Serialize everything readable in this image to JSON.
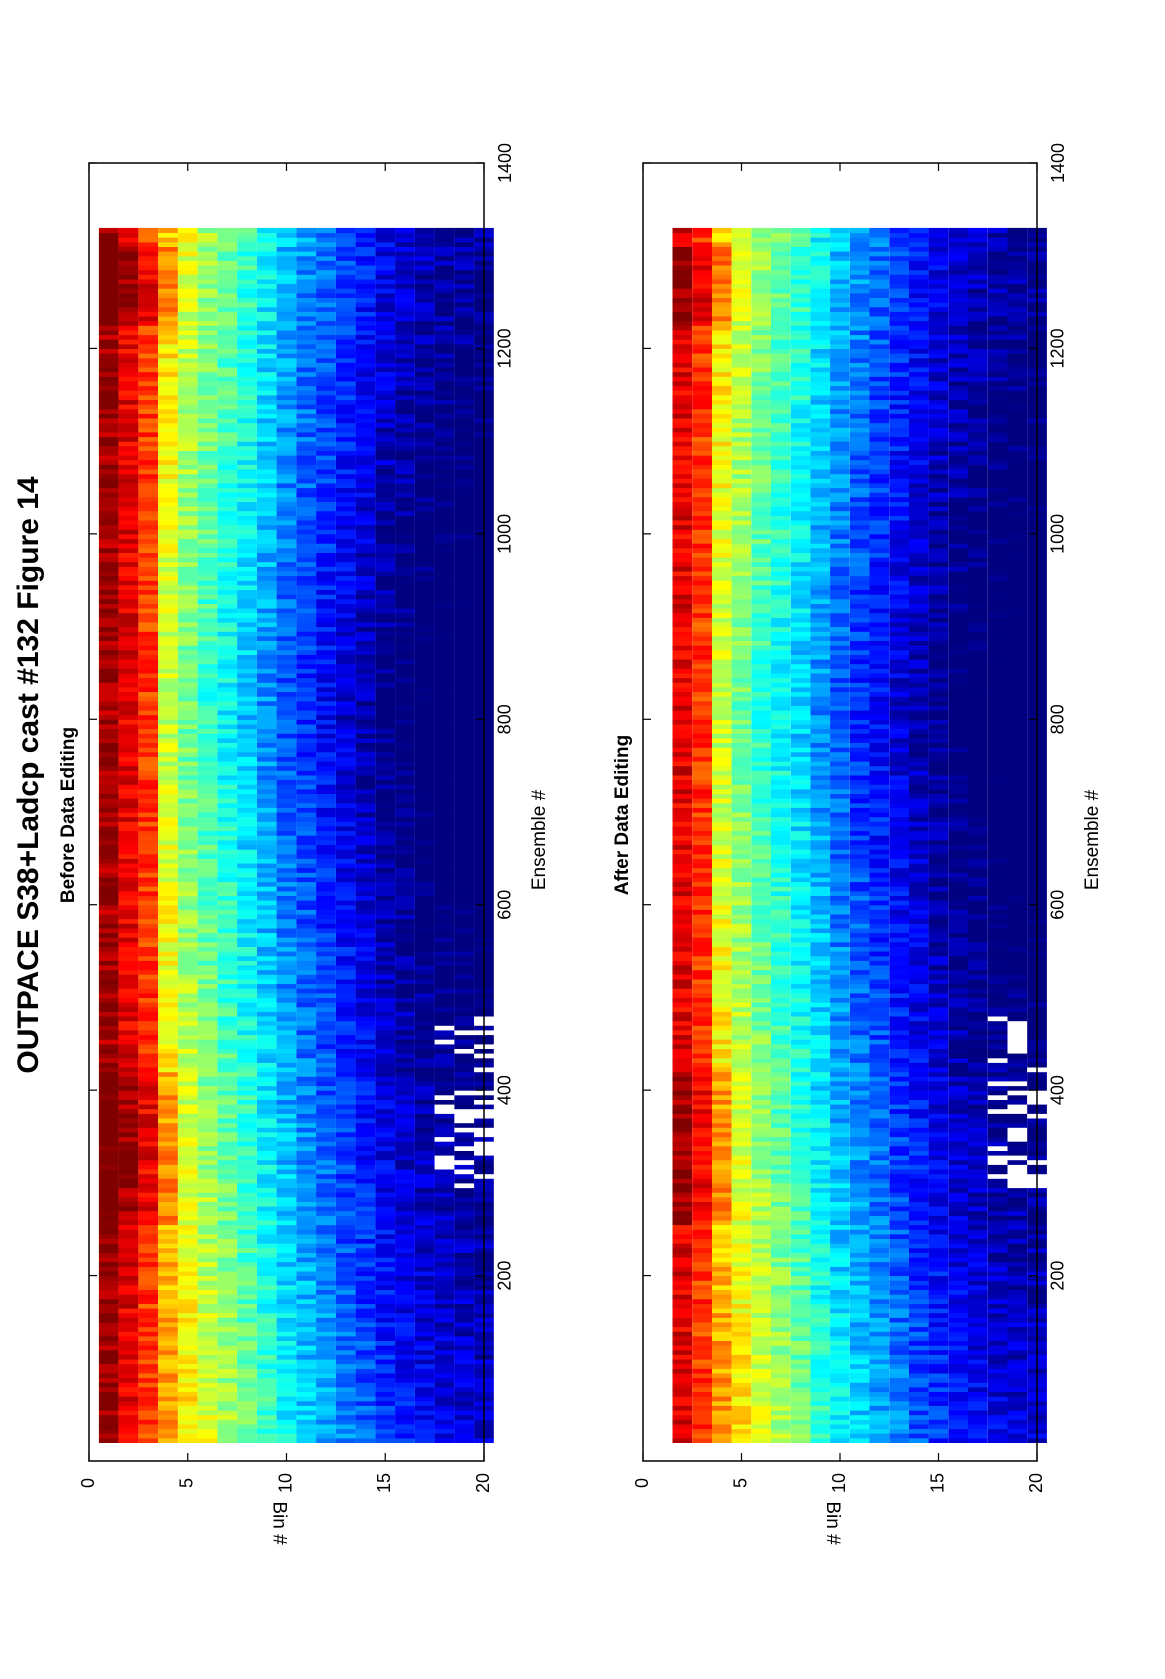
{
  "figure": {
    "title": "OUTPACE S38+Ladcp cast #132  Figure 14"
  },
  "chart_data": [
    {
      "type": "heatmap",
      "title": "Before Data Editing",
      "xlabel": "Ensemble #",
      "ylabel": "Bin #",
      "xlim": [
        0,
        1400
      ],
      "ylim": [
        0,
        20
      ],
      "xticks": [
        200,
        400,
        600,
        800,
        1000,
        1200,
        1400
      ],
      "yticks": [
        0,
        5,
        10,
        15,
        20
      ],
      "colormap": "jet",
      "grid": false,
      "gaps": "white flagged cells in bins 18-20 near ensembles 300-480",
      "bands": [
        {
          "bin": 1,
          "level": 0.97
        },
        {
          "bin": 2,
          "level": 0.9
        },
        {
          "bin": 3,
          "level": 0.82
        },
        {
          "bin": 4,
          "level": 0.74
        },
        {
          "bin": 5,
          "level": 0.66
        },
        {
          "bin": 6,
          "level": 0.6
        },
        {
          "bin": 7,
          "level": 0.55
        },
        {
          "bin": 8,
          "level": 0.5
        },
        {
          "bin": 9,
          "level": 0.44
        },
        {
          "bin": 10,
          "level": 0.38
        },
        {
          "bin": 11,
          "level": 0.34
        },
        {
          "bin": 12,
          "level": 0.3
        },
        {
          "bin": 13,
          "level": 0.26
        },
        {
          "bin": 14,
          "level": 0.22
        },
        {
          "bin": 15,
          "level": 0.18
        },
        {
          "bin": 16,
          "level": 0.15
        },
        {
          "bin": 17,
          "level": 0.13
        },
        {
          "bin": 18,
          "level": 0.11
        },
        {
          "bin": 19,
          "level": 0.1
        },
        {
          "bin": 20,
          "level": 0.09
        }
      ]
    },
    {
      "type": "heatmap",
      "title": "After Data Editing",
      "xlabel": "Ensemble #",
      "ylabel": "Bin #",
      "xlim": [
        0,
        1400
      ],
      "ylim": [
        0,
        20
      ],
      "xticks": [
        200,
        400,
        600,
        800,
        1000,
        1200,
        1400
      ],
      "yticks": [
        0,
        5,
        10,
        15,
        20
      ],
      "colormap": "jet",
      "grid": false,
      "gaps": "bin 1 removed; white flagged cells in bins 18-20 near ensembles 300-480",
      "bands": [
        {
          "bin": 1,
          "level": null
        },
        {
          "bin": 2,
          "level": 0.9
        },
        {
          "bin": 3,
          "level": 0.82
        },
        {
          "bin": 4,
          "level": 0.74
        },
        {
          "bin": 5,
          "level": 0.66
        },
        {
          "bin": 6,
          "level": 0.6
        },
        {
          "bin": 7,
          "level": 0.55
        },
        {
          "bin": 8,
          "level": 0.5
        },
        {
          "bin": 9,
          "level": 0.44
        },
        {
          "bin": 10,
          "level": 0.38
        },
        {
          "bin": 11,
          "level": 0.34
        },
        {
          "bin": 12,
          "level": 0.3
        },
        {
          "bin": 13,
          "level": 0.26
        },
        {
          "bin": 14,
          "level": 0.22
        },
        {
          "bin": 15,
          "level": 0.18
        },
        {
          "bin": 16,
          "level": 0.15
        },
        {
          "bin": 17,
          "level": 0.13
        },
        {
          "bin": 18,
          "level": 0.11
        },
        {
          "bin": 19,
          "level": 0.1
        },
        {
          "bin": 20,
          "level": 0.09
        }
      ]
    }
  ]
}
